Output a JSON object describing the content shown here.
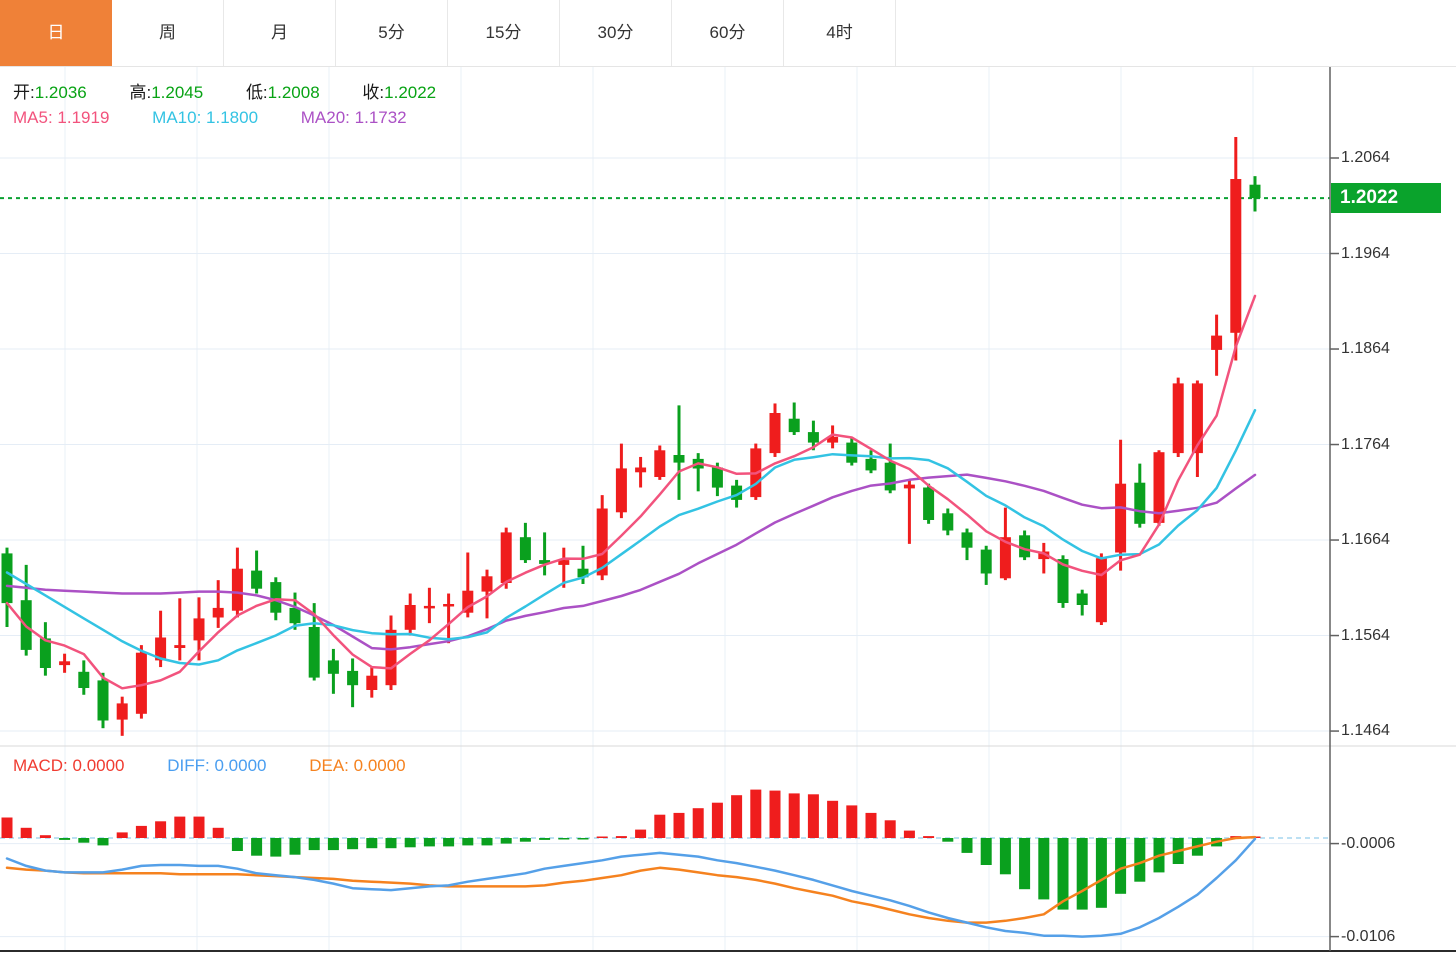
{
  "tabs": [
    {
      "label": "日",
      "active": true
    },
    {
      "label": "周",
      "active": false
    },
    {
      "label": "月",
      "active": false
    },
    {
      "label": "5分",
      "active": false
    },
    {
      "label": "15分",
      "active": false
    },
    {
      "label": "30分",
      "active": false
    },
    {
      "label": "60分",
      "active": false
    },
    {
      "label": "4时",
      "active": false
    }
  ],
  "legend": {
    "open_label": "开:",
    "open": "1.2036",
    "high_label": "高:",
    "high": "1.2045",
    "low_label": "低:",
    "low": "1.2008",
    "close_label": "收:",
    "close": "1.2022",
    "ma5_label": "MA5:",
    "ma5": "1.1919",
    "ma10_label": "MA10:",
    "ma10": "1.1800",
    "ma20_label": "MA20:",
    "ma20": "1.1732"
  },
  "macd_legend": {
    "macd_label": "MACD:",
    "macd": "0.0000",
    "diff_label": "DIFF:",
    "diff": "0.0000",
    "dea_label": "DEA:",
    "dea": "0.0000"
  },
  "price_axis": {
    "ticks": [
      {
        "label": "1.2064",
        "value": 1.2064
      },
      {
        "label": "1.1964",
        "value": 1.1964
      },
      {
        "label": "1.1864",
        "value": 1.1864
      },
      {
        "label": "1.1764",
        "value": 1.1764
      },
      {
        "label": "1.1664",
        "value": 1.1664
      },
      {
        "label": "1.1564",
        "value": 1.1564
      },
      {
        "label": "1.1464",
        "value": 1.1464
      }
    ],
    "current": {
      "label": "1.2022",
      "value": 1.2022
    }
  },
  "macd_axis": {
    "ticks": [
      {
        "label": "-0.0006",
        "value": -0.0006
      },
      {
        "label": "-0.0106",
        "value": -0.0106
      }
    ],
    "zero_value": 0
  },
  "colors": {
    "up": "#ef1d1d",
    "down": "#0aa01e",
    "ma5": "#f2537d",
    "ma10": "#33c3e3",
    "ma20": "#ab51c5",
    "diff_line": "#55a0e8",
    "dea_line": "#f5821f",
    "current_price_line": "#0aa132",
    "current_price_tag_bg": "#0aa32c",
    "macd_zero_dash": "#a5d5ef",
    "grid": "#e5edf6",
    "vgrid": "#eaf0f7",
    "axis_line": "#606060",
    "panel_divider": "#d9d9d9",
    "bottom_border": "#2b2b2b",
    "active_tab_bg": "#ef8138"
  },
  "chart_data": {
    "type": "candlestick",
    "title": "",
    "panels": [
      {
        "name": "price",
        "ylim": [
          1.1464,
          1.2064
        ],
        "grid": true,
        "current_price": 1.2022,
        "candles_ohlc": [
          [
            1.165,
            1.1656,
            1.1573,
            1.1598
          ],
          [
            1.1601,
            1.1638,
            1.1543,
            1.1549
          ],
          [
            1.1561,
            1.1578,
            1.1522,
            1.153
          ],
          [
            1.1533,
            1.1545,
            1.1525,
            1.1537
          ],
          [
            1.1526,
            1.1538,
            1.1502,
            1.1509
          ],
          [
            1.1517,
            1.1525,
            1.1467,
            1.1475
          ],
          [
            1.1476,
            1.15,
            1.1459,
            1.1493
          ],
          [
            1.1482,
            1.1554,
            1.1477,
            1.1546
          ],
          [
            1.1538,
            1.159,
            1.1531,
            1.1562
          ],
          [
            1.1551,
            1.1603,
            1.1538,
            1.1554
          ],
          [
            1.1559,
            1.1604,
            1.1538,
            1.1582
          ],
          [
            1.1583,
            1.1622,
            1.1572,
            1.1593
          ],
          [
            1.159,
            1.1656,
            1.1583,
            1.1634
          ],
          [
            1.1632,
            1.1653,
            1.1608,
            1.1613
          ],
          [
            1.162,
            1.1625,
            1.158,
            1.1588
          ],
          [
            1.1593,
            1.1609,
            1.157,
            1.1577
          ],
          [
            1.1573,
            1.1598,
            1.1517,
            1.152
          ],
          [
            1.1538,
            1.155,
            1.1503,
            1.1524
          ],
          [
            1.1527,
            1.154,
            1.1489,
            1.1512
          ],
          [
            1.1507,
            1.1531,
            1.1499,
            1.1522
          ],
          [
            1.1512,
            1.1585,
            1.1507,
            1.157
          ],
          [
            1.157,
            1.1608,
            1.1564,
            1.1596
          ],
          [
            1.1594,
            1.1614,
            1.1577,
            1.1595
          ],
          [
            1.1596,
            1.1608,
            1.1556,
            1.1597
          ],
          [
            1.1588,
            1.1651,
            1.1583,
            1.1611
          ],
          [
            1.161,
            1.1633,
            1.1582,
            1.1626
          ],
          [
            1.1619,
            1.1677,
            1.1613,
            1.1672
          ],
          [
            1.1667,
            1.1682,
            1.164,
            1.1643
          ],
          [
            1.1643,
            1.1672,
            1.1627,
            1.1639
          ],
          [
            1.1638,
            1.1656,
            1.1614,
            1.1643
          ],
          [
            1.1634,
            1.1658,
            1.1618,
            1.1625
          ],
          [
            1.1627,
            1.1711,
            1.1622,
            1.1697
          ],
          [
            1.1693,
            1.1765,
            1.1687,
            1.1739
          ],
          [
            1.1735,
            1.1751,
            1.1719,
            1.174
          ],
          [
            1.173,
            1.1763,
            1.1727,
            1.1758
          ],
          [
            1.1753,
            1.1805,
            1.1706,
            1.1745
          ],
          [
            1.1749,
            1.1755,
            1.1715,
            1.1739
          ],
          [
            1.174,
            1.1745,
            1.171,
            1.1719
          ],
          [
            1.1721,
            1.1727,
            1.1698,
            1.1706
          ],
          [
            1.1709,
            1.1765,
            1.1706,
            1.176
          ],
          [
            1.1755,
            1.1807,
            1.1751,
            1.1797
          ],
          [
            1.1791,
            1.1808,
            1.1774,
            1.1777
          ],
          [
            1.1777,
            1.1789,
            1.1758,
            1.1766
          ],
          [
            1.1766,
            1.1784,
            1.176,
            1.1772
          ],
          [
            1.1766,
            1.1771,
            1.1742,
            1.1745
          ],
          [
            1.1749,
            1.1758,
            1.1734,
            1.1737
          ],
          [
            1.1745,
            1.1765,
            1.1713,
            1.1716
          ],
          [
            1.1718,
            1.1727,
            1.166,
            1.1722
          ],
          [
            1.1719,
            1.1723,
            1.1681,
            1.1685
          ],
          [
            1.1692,
            1.1697,
            1.1669,
            1.1674
          ],
          [
            1.1672,
            1.1676,
            1.1643,
            1.1656
          ],
          [
            1.1654,
            1.1658,
            1.1617,
            1.1629
          ],
          [
            1.1624,
            1.1698,
            1.1622,
            1.1667
          ],
          [
            1.1669,
            1.1674,
            1.1643,
            1.1646
          ],
          [
            1.1644,
            1.1661,
            1.1629,
            1.1652
          ],
          [
            1.1644,
            1.1648,
            1.1593,
            1.1598
          ],
          [
            1.1608,
            1.1612,
            1.1585,
            1.1596
          ],
          [
            1.1578,
            1.165,
            1.1575,
            1.1645
          ],
          [
            1.1651,
            1.1769,
            1.1632,
            1.1723
          ],
          [
            1.1724,
            1.1744,
            1.1677,
            1.1681
          ],
          [
            1.1682,
            1.1758,
            1.1679,
            1.1756
          ],
          [
            1.1755,
            1.1834,
            1.1751,
            1.1828
          ],
          [
            1.1755,
            1.1831,
            1.173,
            1.1828
          ],
          [
            1.1863,
            1.19,
            1.1836,
            1.1878
          ],
          [
            1.1881,
            1.2086,
            1.1852,
            1.2042
          ],
          [
            1.2036,
            1.2045,
            1.2008,
            1.2022
          ]
        ],
        "ma_lines": [
          {
            "name": "MA5",
            "period": 5,
            "last_value": 1.1919,
            "head_values": []
          },
          {
            "name": "MA10",
            "period": 10,
            "last_value": 1.18,
            "head_values": [
              1.163,
              1.1618,
              1.1606,
              1.1594,
              1.1582,
              1.157,
              1.1558,
              1.1548,
              1.154
            ]
          },
          {
            "name": "MA20",
            "period": 20,
            "last_value": 1.1732,
            "head_values": [
              1.1616,
              1.1614,
              1.1612,
              1.1611,
              1.161,
              1.1609,
              1.1608,
              1.1608,
              1.1608,
              1.1609,
              1.161,
              1.161,
              1.1609,
              1.1606,
              1.1601,
              1.1594,
              1.1585,
              1.1575,
              1.1563
            ]
          }
        ]
      },
      {
        "name": "macd",
        "ylim": [
          -0.0123,
          0.0055
        ],
        "histogram": [
          0.0022,
          0.0011,
          0.0003,
          -0.0002,
          -0.0005,
          -0.0008,
          0.0006,
          0.0013,
          0.0018,
          0.0023,
          0.0023,
          0.0011,
          -0.0014,
          -0.0019,
          -0.002,
          -0.0018,
          -0.0013,
          -0.0013,
          -0.0012,
          -0.0011,
          -0.0011,
          -0.001,
          -0.0009,
          -0.0009,
          -0.0008,
          -0.0008,
          -0.0006,
          -0.0004,
          -0.0002,
          -0.0001,
          -0.0001,
          0.0,
          0.0002,
          0.0009,
          0.0025,
          0.0027,
          0.0032,
          0.0038,
          0.0046,
          0.0052,
          0.0051,
          0.0048,
          0.0047,
          0.004,
          0.0035,
          0.0027,
          0.0019,
          0.0008,
          0.0002,
          -0.0004,
          -0.0016,
          -0.0029,
          -0.0039,
          -0.0055,
          -0.0066,
          -0.0077,
          -0.0077,
          -0.0075,
          -0.006,
          -0.0047,
          -0.0037,
          -0.0028,
          -0.0019,
          -0.0009,
          0.0002,
          0.0001
        ],
        "diff": [
          -0.0022,
          -0.003,
          -0.0035,
          -0.0037,
          -0.0037,
          -0.0037,
          -0.0034,
          -0.003,
          -0.0029,
          -0.0029,
          -0.003,
          -0.003,
          -0.0033,
          -0.0038,
          -0.004,
          -0.0042,
          -0.0045,
          -0.0049,
          -0.0054,
          -0.0055,
          -0.0056,
          -0.0054,
          -0.0052,
          -0.0051,
          -0.0047,
          -0.0044,
          -0.0041,
          -0.0038,
          -0.0033,
          -0.003,
          -0.0027,
          -0.0024,
          -0.002,
          -0.0018,
          -0.0016,
          -0.0018,
          -0.002,
          -0.0024,
          -0.0027,
          -0.0031,
          -0.0035,
          -0.004,
          -0.0045,
          -0.0051,
          -0.0057,
          -0.0062,
          -0.0067,
          -0.0073,
          -0.008,
          -0.0086,
          -0.0091,
          -0.0096,
          -0.01,
          -0.0102,
          -0.0105,
          -0.0105,
          -0.0106,
          -0.0105,
          -0.0103,
          -0.0096,
          -0.0086,
          -0.0074,
          -0.0061,
          -0.0043,
          -0.0024,
          -0.0001
        ],
        "dea": [
          -0.0032,
          -0.0034,
          -0.0035,
          -0.0037,
          -0.0038,
          -0.0038,
          -0.0038,
          -0.0038,
          -0.0038,
          -0.0039,
          -0.0039,
          -0.0039,
          -0.0039,
          -0.004,
          -0.0041,
          -0.0042,
          -0.0043,
          -0.0044,
          -0.0046,
          -0.0047,
          -0.0048,
          -0.0049,
          -0.0051,
          -0.0052,
          -0.0052,
          -0.0052,
          -0.0052,
          -0.0052,
          -0.0051,
          -0.0048,
          -0.0046,
          -0.0043,
          -0.004,
          -0.0035,
          -0.0032,
          -0.0034,
          -0.0037,
          -0.004,
          -0.0042,
          -0.0045,
          -0.0049,
          -0.0054,
          -0.0058,
          -0.0062,
          -0.0068,
          -0.0072,
          -0.0077,
          -0.0082,
          -0.0086,
          -0.0089,
          -0.0091,
          -0.0091,
          -0.0089,
          -0.0086,
          -0.0082,
          -0.0068,
          -0.0057,
          -0.0045,
          -0.0033,
          -0.0027,
          -0.0019,
          -0.0014,
          -0.0009,
          -0.0004,
          0.0,
          0.0001
        ]
      }
    ]
  }
}
